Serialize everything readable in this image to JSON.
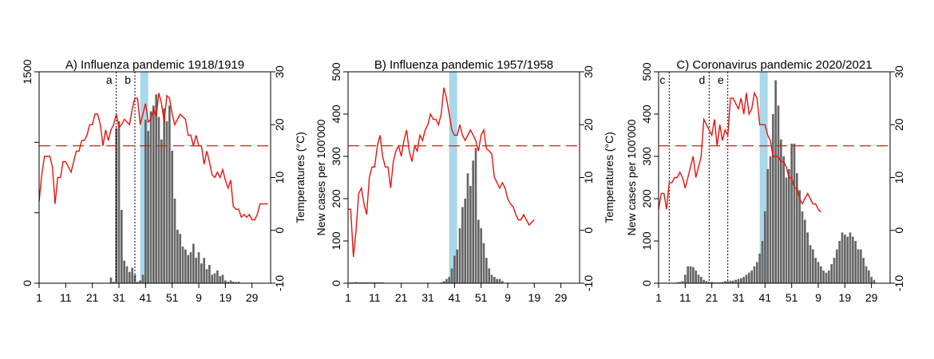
{
  "figure": {
    "colors": {
      "bars": "#666666",
      "temperature": "#e8130e",
      "threshold": "#e8130e",
      "shade": "#a8d8ea",
      "axis": "#000000"
    }
  },
  "chart_data": [
    {
      "type": "bar+line",
      "title": "A) Influenza pandemic 1918/1919",
      "ylabel_left": "",
      "ylabel_right": "Temperatures (°C)",
      "left_ticks": [
        "0",
        "500",
        "1000",
        "1500"
      ],
      "left_tick_labels_shown": [
        "0",
        "1500"
      ],
      "ylim_left": [
        0,
        1500
      ],
      "right_ticks": [
        "-10",
        "0",
        "10",
        "20",
        "30"
      ],
      "ylim_right": [
        -10,
        30
      ],
      "x_tick_labels": [
        "1",
        "11",
        "21",
        "31",
        "41",
        "51",
        "9",
        "19",
        "29"
      ],
      "x_range": [
        1,
        88
      ],
      "threshold_temp": 16,
      "shade_weeks": [
        39,
        42
      ],
      "markers": [
        {
          "label": "a",
          "week": 30
        },
        {
          "label": "b",
          "week": 37
        }
      ],
      "bars": {
        "start_week": 28,
        "values": [
          40,
          10,
          1100,
          1150,
          520,
          160,
          120,
          80,
          110,
          60,
          10,
          20,
          60,
          1160,
          1080,
          1220,
          1260,
          1340,
          1180,
          1020,
          1240,
          1150,
          1260,
          940,
          600,
          380,
          350,
          260,
          240,
          200,
          220,
          280,
          180,
          220,
          140,
          180,
          100,
          130,
          60,
          70,
          90,
          50,
          60,
          20,
          10,
          20,
          10,
          8,
          10
        ]
      },
      "temperature": {
        "start_week": 1,
        "values": [
          5.5,
          10.5,
          14,
          14,
          14,
          12,
          5,
          10,
          10,
          13,
          13,
          12,
          11,
          13,
          15,
          15,
          17,
          17,
          18,
          20,
          20,
          22,
          22,
          20,
          16,
          19,
          17,
          19,
          20,
          22,
          19.5,
          20,
          21,
          20.5,
          20,
          23,
          25,
          25,
          20,
          22,
          24,
          20.5,
          21,
          23,
          21.5,
          26,
          24,
          20.5,
          25.5,
          25,
          22,
          20,
          21,
          22,
          21.5,
          21,
          18,
          18,
          16,
          18,
          16,
          16,
          12.5,
          15,
          13,
          10.5,
          10,
          11,
          10,
          11.5,
          9.5,
          8,
          9.5,
          4.5,
          4,
          4,
          2.5,
          3,
          2.5,
          3,
          2,
          2,
          3,
          5,
          5,
          5,
          5
        ]
      }
    },
    {
      "type": "bar+line",
      "title": "B) Influenza pandemic 1957/1958",
      "ylabel_left": "New cases per 100'000",
      "ylabel_right": "Temperatures (°C)",
      "left_ticks": [
        "0",
        "100",
        "200",
        "300",
        "400",
        "500"
      ],
      "ylim_left": [
        0,
        500
      ],
      "right_ticks": [
        "-10",
        "0",
        "10",
        "20",
        "30"
      ],
      "ylim_right": [
        -10,
        30
      ],
      "x_tick_labels": [
        "1",
        "11",
        "21",
        "31",
        "41",
        "51",
        "9",
        "19",
        "29"
      ],
      "x_range": [
        1,
        88
      ],
      "threshold_temp": 16,
      "shade_weeks": [
        39,
        42
      ],
      "markers": [],
      "bars": {
        "start_week": 2,
        "values": [
          2,
          2,
          3,
          2,
          2,
          2,
          2,
          2,
          2,
          2,
          2,
          2,
          2,
          1,
          1,
          1,
          1,
          1,
          1,
          1,
          1,
          1,
          1,
          1,
          1,
          1,
          1,
          1,
          1,
          1,
          1,
          1,
          1,
          1,
          2,
          5,
          10,
          15,
          35,
          65,
          80,
          130,
          180,
          200,
          260,
          230,
          290,
          320,
          150,
          130,
          95,
          60,
          35,
          20,
          15,
          10,
          10,
          5
        ]
      },
      "temperature": {
        "start_week": 1,
        "values": [
          4,
          4,
          -5,
          0,
          7,
          8,
          5,
          3,
          10,
          12,
          12,
          16,
          18,
          14,
          12,
          12,
          8,
          13,
          15,
          16,
          14,
          17,
          19,
          15,
          13,
          16,
          15,
          18,
          17,
          19,
          20,
          22,
          21,
          21,
          20,
          22,
          27,
          25,
          22,
          19,
          18,
          18,
          20,
          18,
          17,
          18,
          19,
          18,
          17,
          15,
          18,
          19,
          15.5,
          15,
          14.5,
          10,
          9,
          8,
          9,
          8,
          6,
          5,
          4.5,
          3,
          2,
          2,
          3,
          2,
          1,
          1.5,
          2
        ]
      }
    },
    {
      "type": "bar+line",
      "title": "C) Coronavirus pandemic 2020/2021",
      "ylabel_left": "New cases per 100'000",
      "ylabel_right": "",
      "left_ticks": [
        "0",
        "100",
        "200",
        "300",
        "400",
        "500"
      ],
      "ylim_left": [
        0,
        500
      ],
      "right_ticks": [
        "-10",
        "0",
        "10",
        "20",
        "30"
      ],
      "ylim_right": [
        -10,
        30
      ],
      "x_tick_labels": [
        "1",
        "11",
        "21",
        "31",
        "41",
        "51",
        "9",
        "19",
        "29"
      ],
      "x_range": [
        1,
        88
      ],
      "threshold_temp": 16,
      "shade_weeks": [
        39,
        42
      ],
      "markers": [
        {
          "label": "c",
          "week": 5
        },
        {
          "label": "d",
          "week": 20
        },
        {
          "label": "e",
          "week": 27
        }
      ],
      "bars": {
        "start_week": 2,
        "values": [
          1,
          1,
          1,
          1,
          1,
          1,
          2,
          3,
          5,
          20,
          40,
          40,
          38,
          30,
          20,
          15,
          8,
          5,
          3,
          3,
          2,
          2,
          2,
          3,
          5,
          5,
          6,
          6,
          8,
          10,
          12,
          15,
          20,
          25,
          30,
          40,
          50,
          70,
          100,
          170,
          270,
          300,
          400,
          480,
          420,
          340,
          300,
          250,
          270,
          330,
          330,
          260,
          220,
          170,
          150,
          120,
          90,
          80,
          60,
          50,
          40,
          30,
          25,
          30,
          45,
          60,
          80,
          100,
          120,
          115,
          110,
          120,
          110,
          100,
          80,
          80,
          60,
          40,
          30,
          15,
          8
        ]
      },
      "temperature": {
        "start_week": 1,
        "values": [
          4,
          7,
          7,
          4,
          9,
          9,
          10,
          10,
          11,
          10,
          8,
          10,
          12,
          14,
          10,
          12,
          14,
          21,
          20,
          19,
          18,
          21,
          16,
          20,
          17,
          19,
          18,
          25,
          25,
          24,
          23,
          25,
          22,
          26,
          22,
          23,
          26,
          25,
          20,
          20,
          20,
          18,
          17,
          14,
          14,
          14,
          13,
          13,
          12,
          10,
          10,
          8,
          8,
          6,
          5,
          6,
          7,
          6,
          5,
          5,
          4,
          3.5
        ]
      }
    }
  ]
}
